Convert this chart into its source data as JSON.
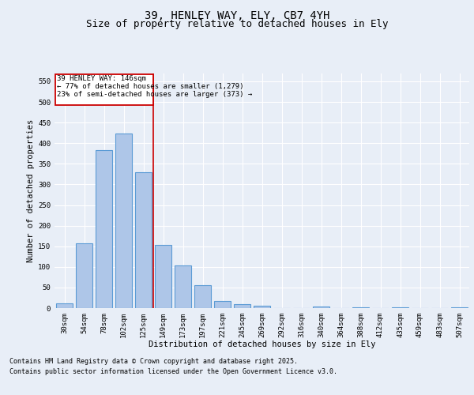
{
  "title1": "39, HENLEY WAY, ELY, CB7 4YH",
  "title2": "Size of property relative to detached houses in Ely",
  "xlabel": "Distribution of detached houses by size in Ely",
  "ylabel": "Number of detached properties",
  "categories": [
    "30sqm",
    "54sqm",
    "78sqm",
    "102sqm",
    "125sqm",
    "149sqm",
    "173sqm",
    "197sqm",
    "221sqm",
    "245sqm",
    "269sqm",
    "292sqm",
    "316sqm",
    "340sqm",
    "364sqm",
    "388sqm",
    "412sqm",
    "435sqm",
    "459sqm",
    "483sqm",
    "507sqm"
  ],
  "values": [
    12,
    157,
    383,
    424,
    330,
    153,
    103,
    56,
    18,
    10,
    5,
    0,
    0,
    3,
    0,
    2,
    0,
    1,
    0,
    0,
    2
  ],
  "bar_color": "#aec6e8",
  "bar_edge_color": "#5b9bd5",
  "bar_linewidth": 0.8,
  "vline_color": "#cc0000",
  "annotation_title": "39 HENLEY WAY: 146sqm",
  "annotation_line1": "← 77% of detached houses are smaller (1,279)",
  "annotation_line2": "23% of semi-detached houses are larger (373) →",
  "annotation_box_color": "#cc0000",
  "ylim": [
    0,
    570
  ],
  "yticks": [
    0,
    50,
    100,
    150,
    200,
    250,
    300,
    350,
    400,
    450,
    500,
    550
  ],
  "bg_color": "#e8eef7",
  "plot_bg_color": "#e8eef7",
  "grid_color": "#ffffff",
  "footer1": "Contains HM Land Registry data © Crown copyright and database right 2025.",
  "footer2": "Contains public sector information licensed under the Open Government Licence v3.0.",
  "title_fontsize": 10,
  "subtitle_fontsize": 9,
  "label_fontsize": 7.5,
  "tick_fontsize": 6.5,
  "annot_fontsize": 6.5,
  "footer_fontsize": 6
}
